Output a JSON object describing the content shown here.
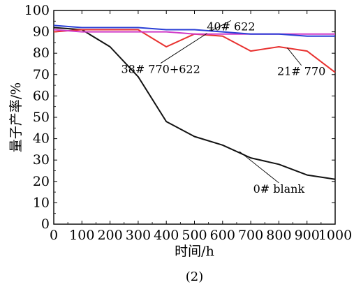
{
  "chart_data": {
    "type": "line",
    "title": "",
    "xlabel": "时间/h",
    "ylabel": "量子产率/%",
    "caption": "(2)",
    "xlim": [
      0,
      1000
    ],
    "ylim": [
      0,
      100
    ],
    "x_ticks": [
      0,
      100,
      200,
      300,
      400,
      500,
      600,
      700,
      800,
      900,
      1000
    ],
    "y_ticks": [
      0,
      10,
      20,
      30,
      40,
      50,
      60,
      70,
      80,
      90,
      100
    ],
    "grid": false,
    "series": [
      {
        "name": "0# blank",
        "color": "#111111",
        "x": [
          0,
          100,
          200,
          300,
          400,
          500,
          600,
          700,
          800,
          900,
          1000
        ],
        "y": [
          92,
          91,
          83,
          69,
          48,
          41,
          37,
          31,
          28,
          23,
          21
        ]
      },
      {
        "name": "21# 770",
        "color": "#e8312f",
        "x": [
          0,
          100,
          200,
          300,
          400,
          500,
          600,
          700,
          800,
          900,
          1000
        ],
        "y": [
          90,
          91,
          91,
          91,
          83,
          89,
          88,
          81,
          83,
          81,
          71
        ]
      },
      {
        "name": "38# 770+622",
        "color": "#d03cc8",
        "x": [
          0,
          100,
          200,
          300,
          400,
          500,
          600,
          700,
          800,
          900,
          1000
        ],
        "y": [
          91,
          90,
          90,
          90,
          90,
          89,
          89,
          89,
          89,
          89,
          89
        ]
      },
      {
        "name": "40# 622",
        "color": "#2a3fd6",
        "x": [
          0,
          100,
          200,
          300,
          400,
          500,
          600,
          700,
          800,
          900,
          1000
        ],
        "y": [
          93,
          92,
          92,
          92,
          91,
          91,
          90,
          89,
          89,
          88,
          88
        ]
      }
    ],
    "annotations": [
      {
        "label": "40# 622",
        "point": [
          560,
          90.5
        ],
        "text_at": [
          630,
          94
        ]
      },
      {
        "label": "38# 770+622",
        "point": [
          545,
          89.3
        ],
        "text_at": [
          380,
          74
        ]
      },
      {
        "label": "21# 770",
        "point": [
          830,
          82.5
        ],
        "text_at": [
          880,
          73
        ]
      },
      {
        "label": "0# blank",
        "point": [
          660,
          34
        ],
        "text_at": [
          800,
          18
        ]
      }
    ]
  }
}
